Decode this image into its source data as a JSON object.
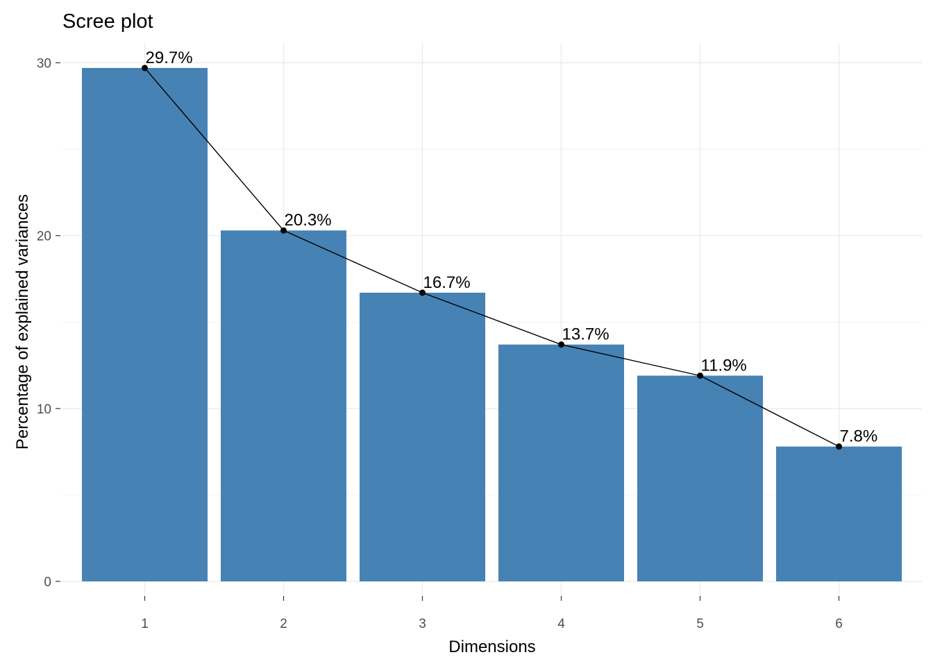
{
  "chart_data": {
    "type": "bar",
    "title": "Scree plot",
    "xlabel": "Dimensions",
    "ylabel": "Percentage of explained variances",
    "categories": [
      "1",
      "2",
      "3",
      "4",
      "5",
      "6"
    ],
    "values": [
      29.7,
      20.3,
      16.7,
      13.7,
      11.9,
      7.8
    ],
    "data_labels": [
      "29.7%",
      "20.3%",
      "16.7%",
      "13.7%",
      "11.9%",
      "7.8%"
    ],
    "yticks": [
      0,
      10,
      20,
      30
    ],
    "ytick_labels": [
      "0",
      "10",
      "20",
      "30"
    ],
    "ylim": [
      0,
      31.2
    ],
    "grid": true,
    "line_overlay": true,
    "bar_color": "#4682B4",
    "line_color": "#000000"
  }
}
